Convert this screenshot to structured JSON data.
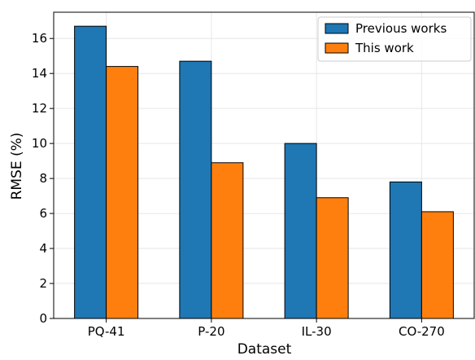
{
  "chart_data": {
    "type": "bar",
    "title": "",
    "xlabel": "Dataset",
    "ylabel": "RMSE (%)",
    "categories": [
      "PQ-41",
      "P-20",
      "IL-30",
      "CO-270"
    ],
    "series": [
      {
        "name": "Previous works",
        "color": "#1f77b4",
        "values": [
          16.7,
          14.7,
          10.0,
          7.8
        ]
      },
      {
        "name": "This work",
        "color": "#ff7f0e",
        "values": [
          14.4,
          8.9,
          6.9,
          6.1
        ]
      }
    ],
    "ylim": [
      0,
      17.5
    ],
    "yticks": [
      0,
      2,
      4,
      6,
      8,
      10,
      12,
      14,
      16
    ],
    "grid": true,
    "legend_position": "top-right"
  }
}
